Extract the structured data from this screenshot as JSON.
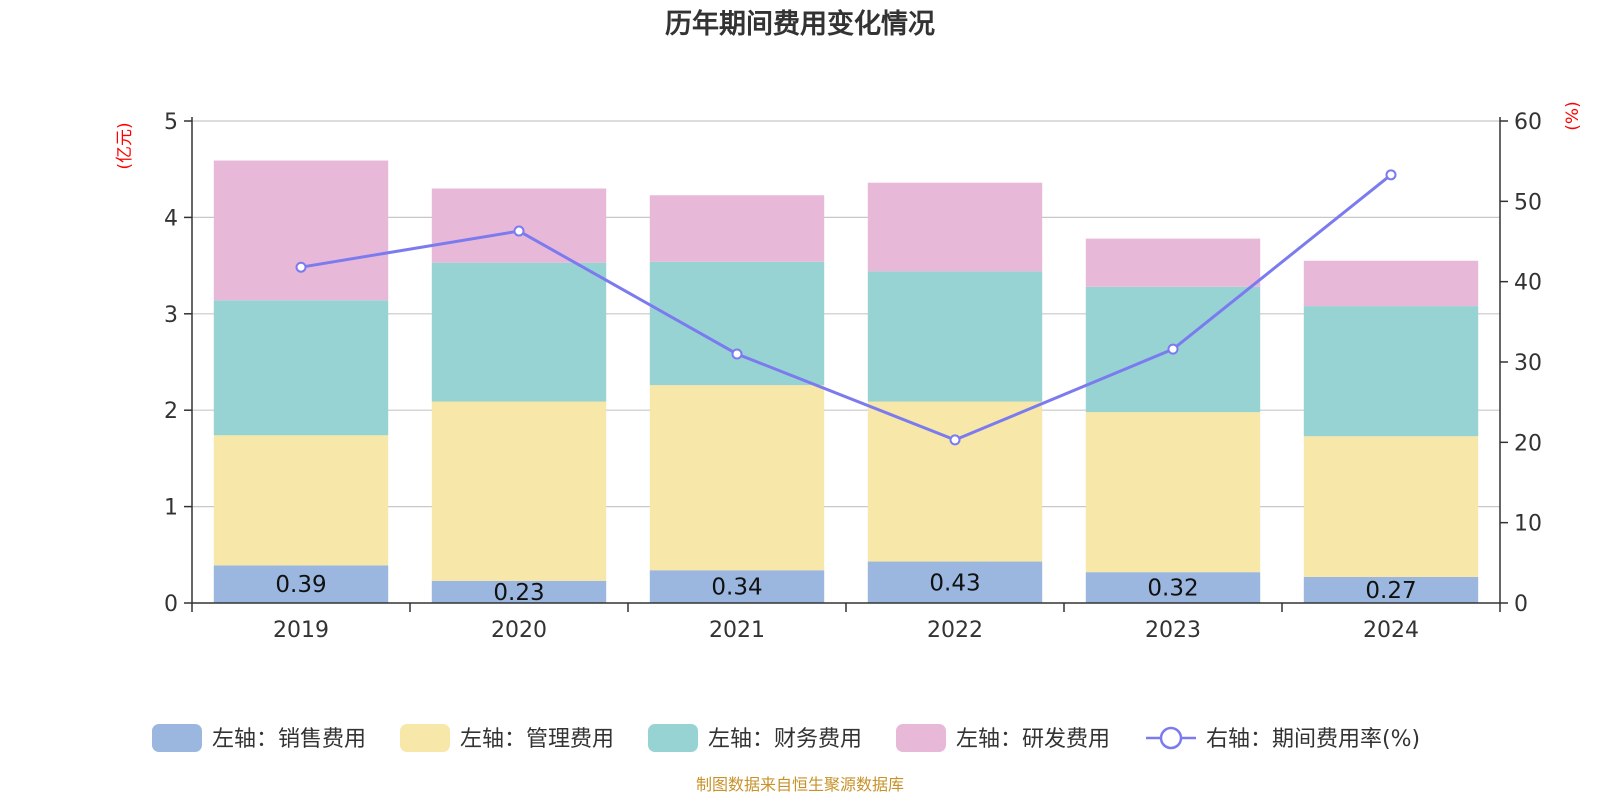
{
  "title": "历年期间费用变化情况",
  "source": "制图数据来自恒生聚源数据库",
  "chart_data": {
    "type": "bar",
    "stacked": true,
    "categories": [
      "2019",
      "2020",
      "2021",
      "2022",
      "2023",
      "2024"
    ],
    "left_axis": {
      "unit": "(亿元)",
      "ylim": [
        0,
        5
      ],
      "ticks": [
        "0",
        "1",
        "2",
        "3",
        "4",
        "5"
      ]
    },
    "right_axis": {
      "unit": "(%)",
      "ylim": [
        0,
        60
      ],
      "ticks": [
        "0",
        "10",
        "20",
        "30",
        "40",
        "50",
        "60"
      ]
    },
    "grid": true,
    "legend_position": "bottom",
    "series": [
      {
        "name": "左轴：销售费用",
        "axis": "left",
        "type": "bar",
        "color": "#9bb7e0",
        "values": [
          0.39,
          0.23,
          0.34,
          0.43,
          0.32,
          0.27
        ],
        "labels": [
          "0.39",
          "0.23",
          "0.34",
          "0.43",
          "0.32",
          "0.27"
        ]
      },
      {
        "name": "左轴：管理费用",
        "axis": "left",
        "type": "bar",
        "color": "#f7e7a8",
        "values": [
          1.35,
          1.86,
          1.92,
          1.66,
          1.66,
          1.46
        ]
      },
      {
        "name": "左轴：财务费用",
        "axis": "left",
        "type": "bar",
        "color": "#97d3d3",
        "values": [
          1.4,
          1.44,
          1.28,
          1.35,
          1.3,
          1.35
        ]
      },
      {
        "name": "左轴：研发费用",
        "axis": "left",
        "type": "bar",
        "color": "#e8b8d9",
        "values": [
          1.45,
          0.77,
          0.69,
          0.92,
          0.5,
          0.47
        ]
      },
      {
        "name": "右轴：期间费用率(%)",
        "axis": "right",
        "type": "line",
        "color": "#7b7bef",
        "values": [
          41.8,
          46.3,
          31.0,
          20.3,
          31.6,
          53.3
        ]
      }
    ]
  }
}
